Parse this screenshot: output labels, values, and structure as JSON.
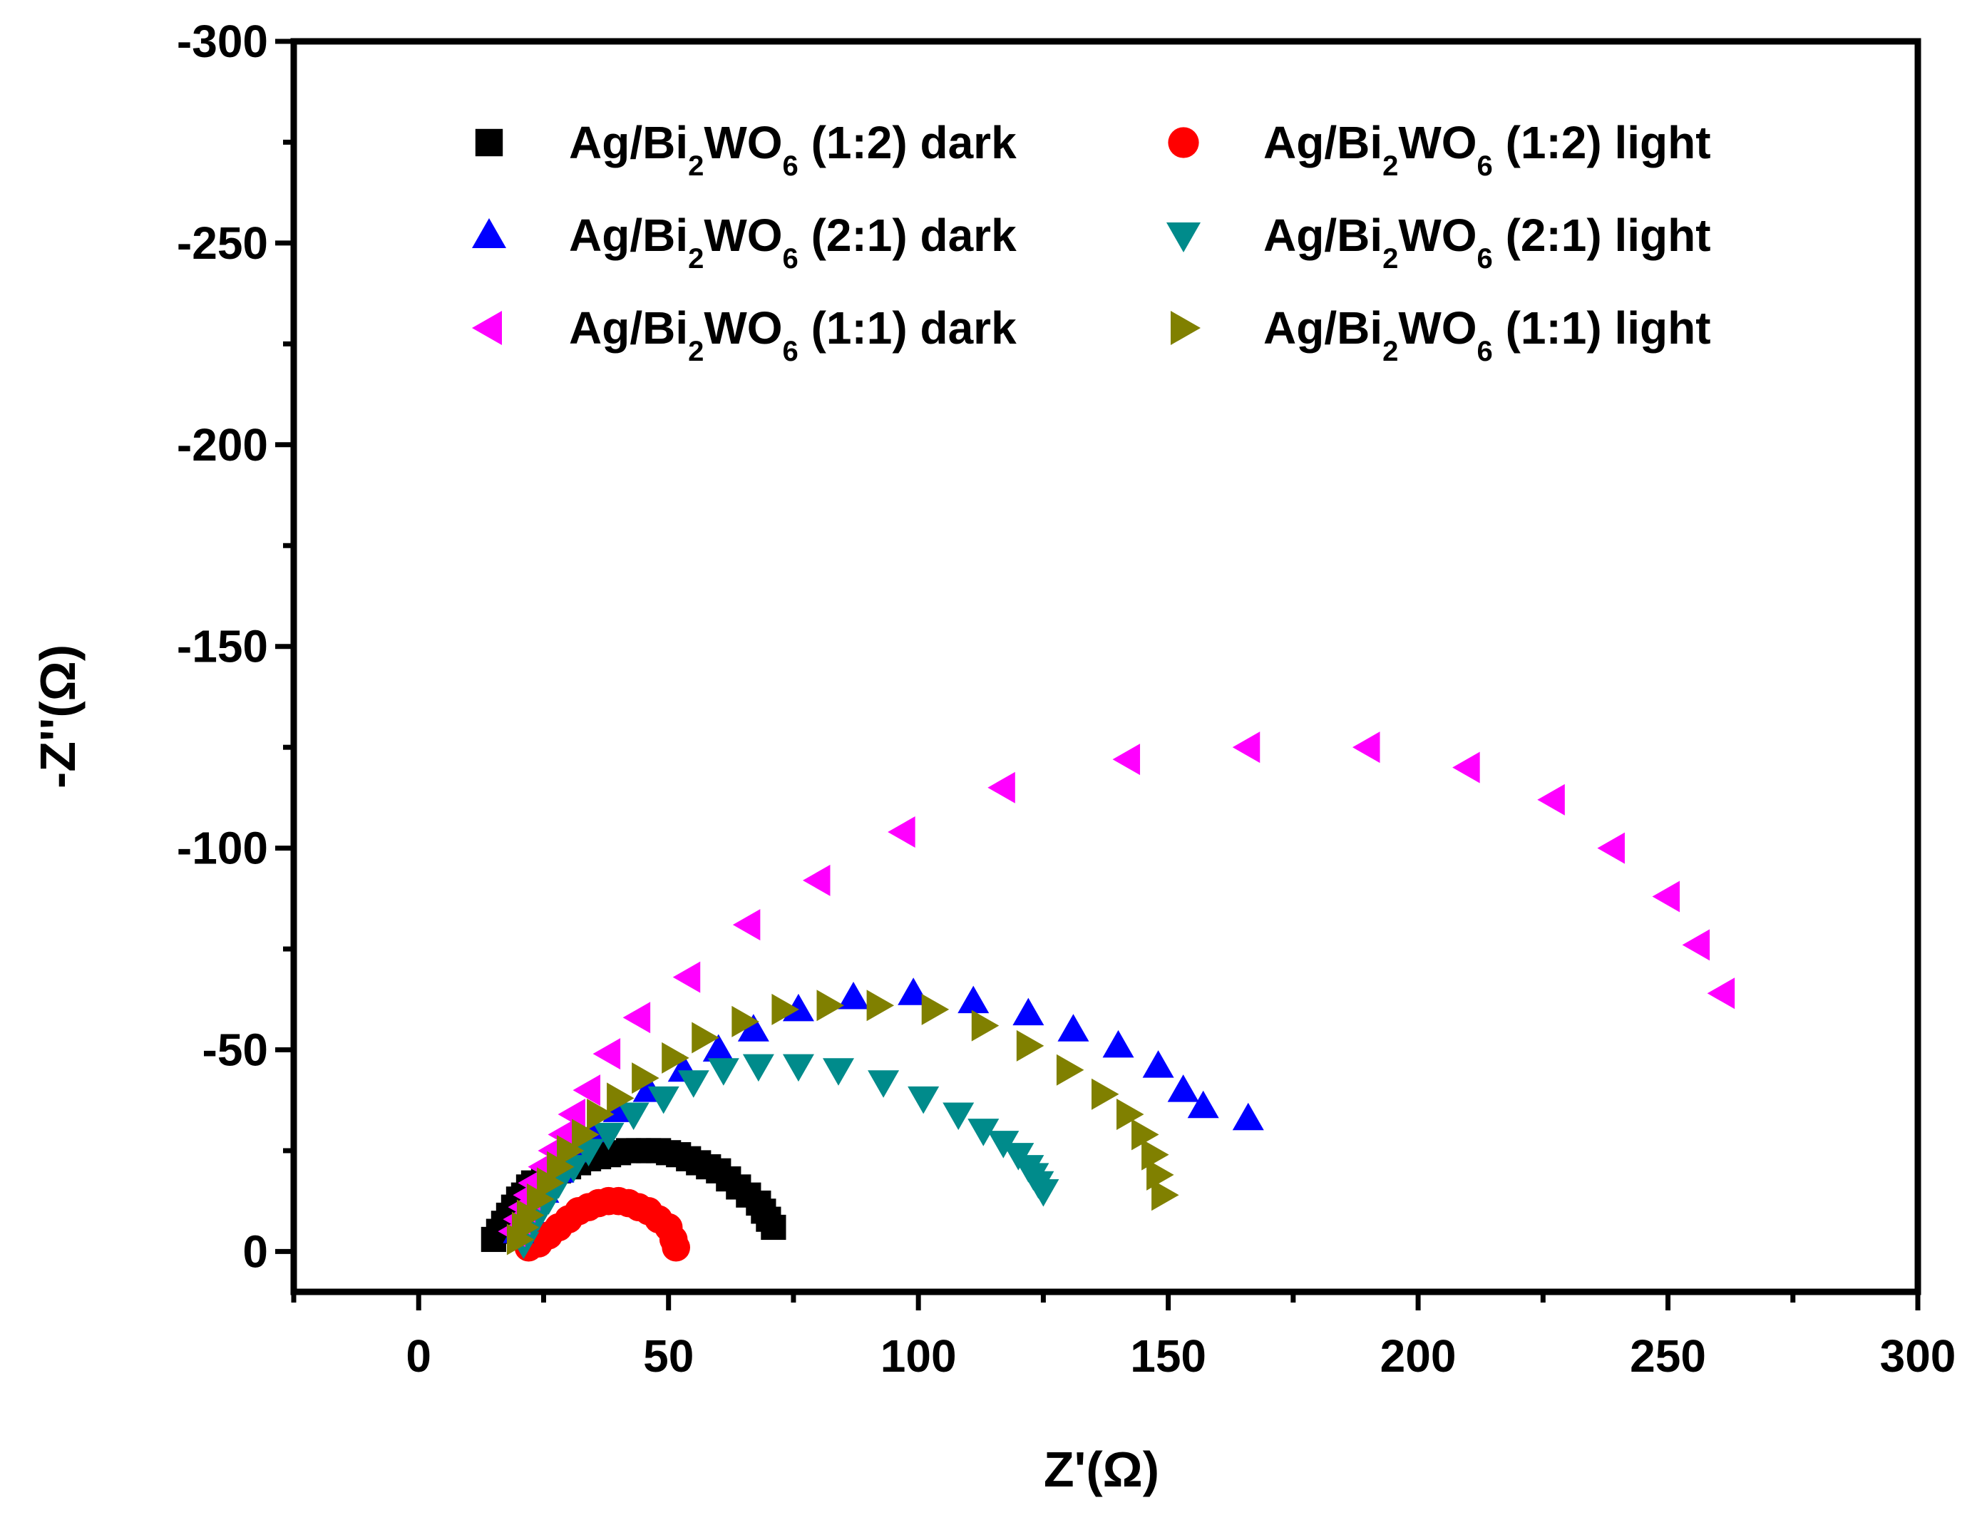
{
  "chart_data": {
    "type": "scatter",
    "title": "",
    "xlabel": "Z'(Ω)",
    "ylabel": "-Z''(Ω)",
    "xlim": [
      -25,
      300
    ],
    "ylim": [
      10,
      -300
    ],
    "xticks": [
      "0",
      "50",
      "100",
      "150",
      "200",
      "250",
      "300"
    ],
    "yticks": [
      "0",
      "-50",
      "-100",
      "-150",
      "-200",
      "-250",
      "-300"
    ],
    "legend_position": "top",
    "series": [
      {
        "name": "Ag/Bi2WO6 (1:2) dark",
        "legend_parts": {
          "pre": "Ag/Bi",
          "sub1": "2",
          "mid": "WO",
          "sub2": "6",
          "post": " (1:2) dark"
        },
        "color": "#000000",
        "marker": "square",
        "x": [
          15,
          16,
          17,
          18,
          19,
          20,
          21,
          22,
          23,
          25,
          26,
          28,
          30,
          32,
          34,
          36,
          38,
          40,
          42,
          44,
          46,
          48,
          50,
          52,
          54,
          56,
          58,
          60,
          62,
          64,
          66,
          68,
          69,
          70,
          71
        ],
        "y": [
          -3,
          -5,
          -7,
          -9,
          -11,
          -13,
          -14,
          -16,
          -17,
          -18,
          -19,
          -20,
          -21,
          -22,
          -23,
          -23.5,
          -24,
          -24.5,
          -25,
          -25,
          -25,
          -25,
          -24.5,
          -24,
          -23,
          -22,
          -21,
          -20,
          -18,
          -16,
          -14,
          -12,
          -10,
          -8,
          -6
        ]
      },
      {
        "name": "Ag/Bi2WO6 (1:2) light",
        "legend_parts": {
          "pre": "Ag/Bi",
          "sub1": "2",
          "mid": "WO",
          "sub2": "6",
          "post": " (1:2) light"
        },
        "color": "#ff0000",
        "marker": "circle",
        "x": [
          22,
          24,
          26,
          28,
          30,
          32,
          34,
          36,
          38,
          40,
          42,
          44,
          46,
          48,
          50,
          51,
          51.5
        ],
        "y": [
          -1,
          -2,
          -4,
          -6,
          -8,
          -10,
          -11,
          -12,
          -12.5,
          -12.5,
          -12,
          -11,
          -10,
          -8,
          -6,
          -3,
          -1
        ]
      },
      {
        "name": "Ag/Bi2WO6 (2:1) dark",
        "legend_parts": {
          "pre": "Ag/Bi",
          "sub1": "2",
          "mid": "WO",
          "sub2": "6",
          "post": " (2:1) dark"
        },
        "color": "#0000ff",
        "marker": "triangle-up",
        "x": [
          20,
          22,
          25,
          28,
          31,
          35,
          40,
          46,
          53,
          60,
          67,
          76,
          87,
          99,
          111,
          122,
          131,
          140,
          148,
          153,
          157,
          166
        ],
        "y": [
          -5,
          -10,
          -15,
          -20,
          -25,
          -30,
          -35,
          -40,
          -45,
          -50,
          -55,
          -60,
          -63,
          -64,
          -62,
          -59,
          -55,
          -51,
          -46,
          -40,
          -36,
          -33
        ]
      },
      {
        "name": "Ag/Bi2WO6 (2:1) light",
        "legend_parts": {
          "pre": "Ag/Bi",
          "sub1": "2",
          "mid": "WO",
          "sub2": "6",
          "post": " (2:1) light"
        },
        "color": "#008b8b",
        "marker": "triangle-down",
        "x": [
          21,
          22,
          24,
          26,
          28,
          31,
          34,
          38,
          43,
          49,
          55,
          61,
          68,
          76,
          84,
          93,
          101,
          108,
          113,
          117,
          120,
          122,
          123,
          124,
          125
        ],
        "y": [
          -2,
          -5,
          -9,
          -13,
          -17,
          -21,
          -25,
          -29,
          -34,
          -38,
          -42,
          -45,
          -46,
          -46,
          -45,
          -42,
          -38,
          -34,
          -30,
          -27,
          -24,
          -21,
          -19,
          -17,
          -15
        ]
      },
      {
        "name": "Ag/Bi2WO6 (1:1) dark",
        "legend_parts": {
          "pre": "Ag/Bi",
          "sub1": "2",
          "mid": "WO",
          "sub2": "6",
          "post": " (1:1) dark"
        },
        "color": "#ff00ff",
        "marker": "triangle-left",
        "x": [
          19,
          20,
          21,
          22,
          23,
          25,
          27,
          29,
          31,
          34,
          38,
          44,
          54,
          66,
          80,
          97,
          117,
          142,
          166,
          190,
          210,
          227,
          239,
          250,
          256,
          261
        ],
        "y": [
          -5,
          -8,
          -11,
          -14,
          -17,
          -21,
          -25,
          -29,
          -34,
          -40,
          -49,
          -58,
          -68,
          -81,
          -92,
          -104,
          -115,
          -122,
          -125,
          -125,
          -120,
          -112,
          -100,
          -88,
          -76,
          -64
        ]
      },
      {
        "name": "Ag/Bi2WO6 (1:1) light",
        "legend_parts": {
          "pre": "Ag/Bi",
          "sub1": "2",
          "mid": "WO",
          "sub2": "6",
          "post": " (1:1) light"
        },
        "color": "#808000",
        "marker": "triangle-right",
        "x": [
          20,
          21,
          22,
          24,
          26,
          28,
          30,
          33,
          36,
          40,
          45,
          51,
          57,
          65,
          73,
          82,
          92,
          103,
          113,
          122,
          130,
          137,
          142,
          145,
          147,
          148,
          149
        ],
        "y": [
          -3,
          -6,
          -9,
          -13,
          -17,
          -21,
          -25,
          -29,
          -34,
          -38,
          -43,
          -48,
          -53,
          -57,
          -60,
          -61,
          -61,
          -60,
          -56,
          -51,
          -45,
          -39,
          -34,
          -29,
          -24,
          -19,
          -14
        ]
      }
    ]
  }
}
